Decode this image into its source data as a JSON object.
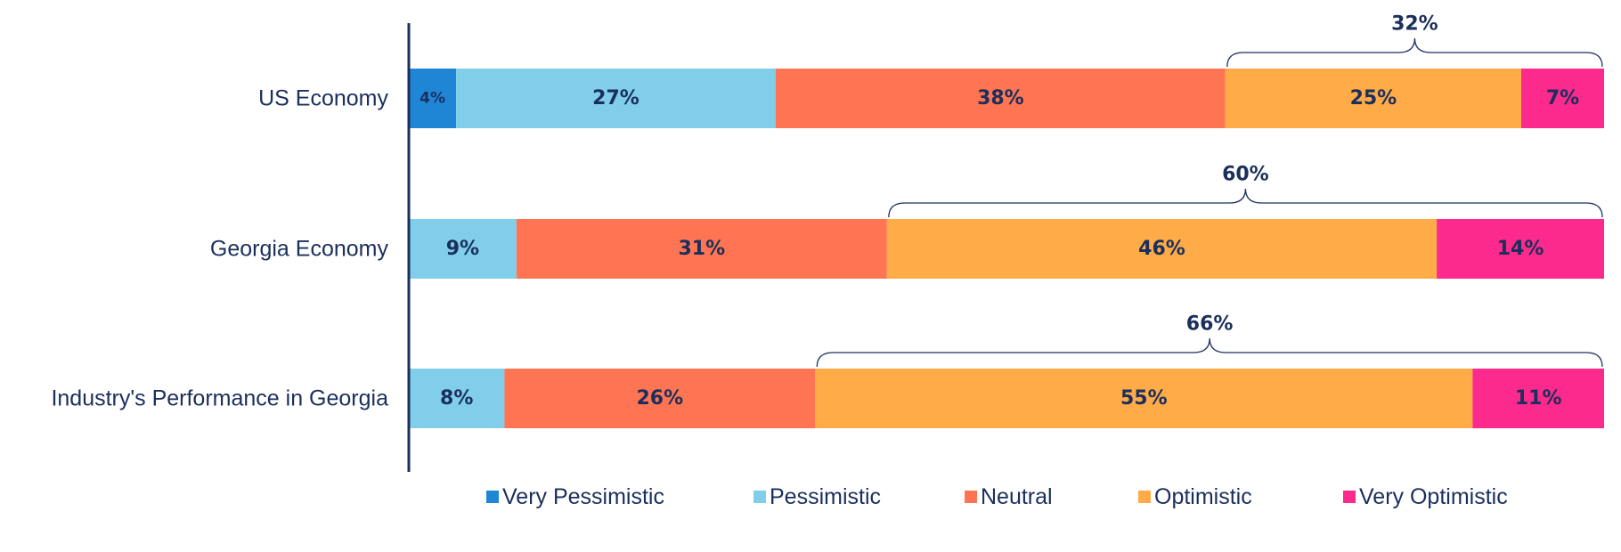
{
  "chart_data": {
    "type": "bar",
    "orientation": "horizontal",
    "stacked": true,
    "title": "",
    "xlabel": "",
    "ylabel": "",
    "xlim": [
      0,
      100
    ],
    "grid": false,
    "legend_position": "bottom",
    "categories": [
      "US Economy",
      "Georgia Economy",
      "Industry's Performance in Georgia"
    ],
    "series": [
      {
        "name": "Very Pessimistic",
        "color": "#1f86d6",
        "values": [
          4,
          0,
          0
        ],
        "labels": [
          "4%",
          "",
          ""
        ]
      },
      {
        "name": "Pessimistic",
        "color": "#80ceea",
        "values": [
          27,
          9,
          8
        ],
        "labels": [
          "27%",
          "9%",
          "8%"
        ]
      },
      {
        "name": "Neutral",
        "color": "#ff7553",
        "values": [
          38,
          31,
          26
        ],
        "labels": [
          "38%",
          "31%",
          "26%"
        ]
      },
      {
        "name": "Optimistic",
        "color": "#ffab48",
        "values": [
          25,
          46,
          55
        ],
        "labels": [
          "25%",
          "46%",
          "55%"
        ]
      },
      {
        "name": "Very Optimistic",
        "color": "#fc2a8c",
        "values": [
          7,
          14,
          11
        ],
        "labels": [
          "7%",
          "14%",
          "11%"
        ]
      }
    ],
    "annotations": [
      {
        "category": "US Economy",
        "label": "32%",
        "spans": [
          "Optimistic",
          "Very Optimistic"
        ]
      },
      {
        "category": "Georgia Economy",
        "label": "60%",
        "spans": [
          "Optimistic",
          "Very Optimistic"
        ]
      },
      {
        "category": "Industry's Performance in Georgia",
        "label": "66%",
        "spans": [
          "Optimistic",
          "Very Optimistic"
        ]
      }
    ]
  }
}
